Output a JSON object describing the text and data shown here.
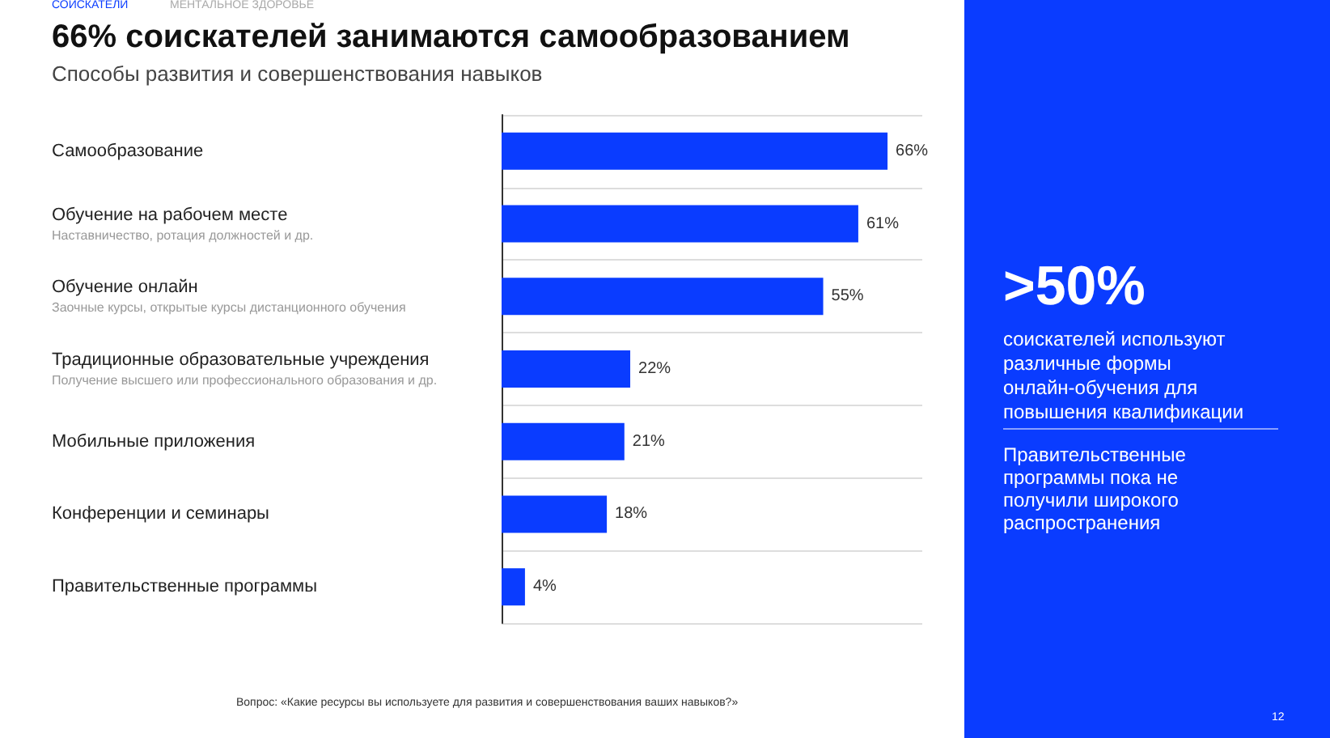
{
  "chart_data": {
    "type": "bar",
    "orientation": "horizontal",
    "title": "66% соискателей занимаются самообразованием",
    "subtitle": "Способы развития и совершенствования навыков",
    "categories": [
      "Самообразование",
      "Обучение на рабочем месте\nНаставничество, ротация должностей и др.",
      "Обучение онлайн\nЗаочные курсы, открытые курсы дистанционного обучения",
      "Традиционные образовательные учреждения\nПолучение высшего или профессионального образования и др.",
      "Мобильные приложения",
      "Конференции и семинары",
      "Правительственные программы"
    ],
    "values": [
      66,
      61,
      55,
      22,
      21,
      18,
      4
    ],
    "value_labels": [
      "66%",
      "61%",
      "55%",
      "22%",
      "21%",
      "18%",
      "4%"
    ],
    "color": "#0a3cff",
    "grid": "y",
    "annotations": [
      "СОИСКАТЕЛИ",
      "МЕНТАЛЬНОЕ ЗДОРОВЬЕ",
      ">50%",
      "соискателей используют различные формы онлайн-обучения для повышения квалификации",
      "Правительственные программы пока не получили широкого распространения",
      "Вопрос: «Какие ресурсы вы используете для развития и совершенствования ваших навыков?»",
      "12"
    ]
  }
}
